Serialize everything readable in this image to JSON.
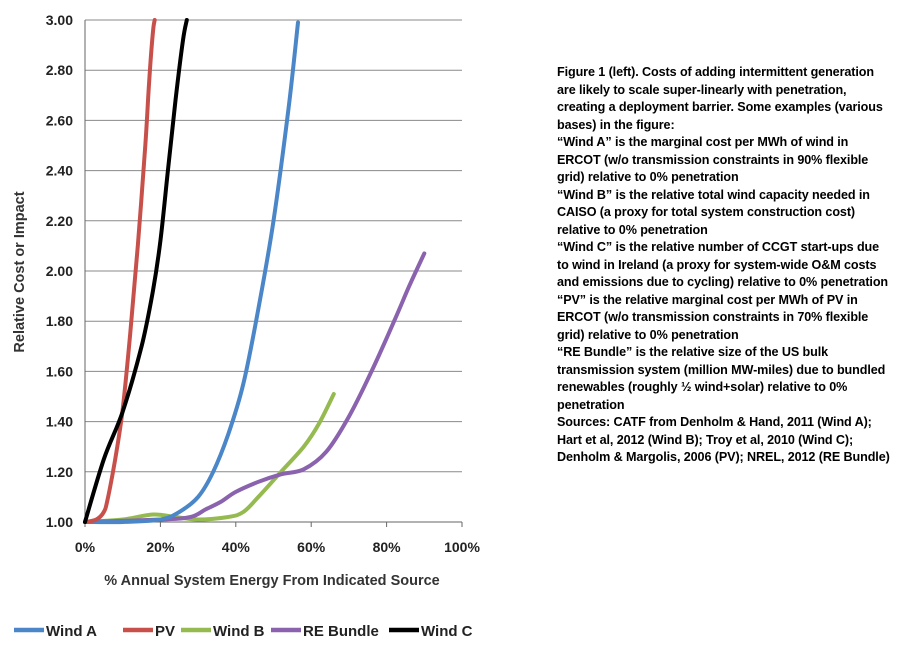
{
  "chart_data": {
    "type": "line",
    "xlabel": "% Annual System Energy From Indicated Source",
    "ylabel": "Relative Cost or Impact",
    "xlim": [
      0,
      100
    ],
    "ylim": [
      1.0,
      3.0
    ],
    "x_ticks": [
      "0%",
      "20%",
      "40%",
      "60%",
      "80%",
      "100%"
    ],
    "y_ticks": [
      "1.00",
      "1.20",
      "1.40",
      "1.60",
      "1.80",
      "2.00",
      "2.20",
      "2.40",
      "2.60",
      "2.80",
      "3.00"
    ],
    "grid": true,
    "legend_position": "bottom",
    "series": [
      {
        "name": "Wind A",
        "color": "#4a86c8",
        "x": [
          0,
          10,
          20,
          25,
          30,
          34,
          38,
          42,
          46,
          50,
          54,
          56.5
        ],
        "y": [
          1.0,
          1.0,
          1.01,
          1.04,
          1.1,
          1.2,
          1.35,
          1.55,
          1.85,
          2.2,
          2.65,
          2.99
        ]
      },
      {
        "name": "PV",
        "color": "#c8504b",
        "x": [
          0,
          3,
          5,
          6,
          8,
          10,
          12,
          14,
          16,
          17,
          18,
          18.5
        ],
        "y": [
          1.0,
          1.01,
          1.04,
          1.09,
          1.25,
          1.45,
          1.75,
          2.1,
          2.5,
          2.75,
          2.95,
          3.0
        ]
      },
      {
        "name": "Wind B",
        "color": "#95ba50",
        "x": [
          0,
          10,
          18,
          24,
          30,
          38,
          42,
          46,
          52,
          58,
          62,
          66
        ],
        "y": [
          1.0,
          1.01,
          1.03,
          1.02,
          1.01,
          1.02,
          1.04,
          1.1,
          1.2,
          1.3,
          1.39,
          1.51
        ]
      },
      {
        "name": "RE Bundle",
        "color": "#8a62ad",
        "x": [
          0,
          20,
          28,
          32,
          36,
          40,
          46,
          52,
          58,
          64,
          70,
          76,
          82,
          86,
          90
        ],
        "y": [
          1.0,
          1.01,
          1.02,
          1.05,
          1.08,
          1.12,
          1.16,
          1.19,
          1.21,
          1.28,
          1.42,
          1.6,
          1.8,
          1.94,
          2.07
        ]
      },
      {
        "name": "Wind C",
        "color": "#000000",
        "x": [
          0,
          5,
          10,
          15,
          18,
          20,
          22,
          24,
          26,
          27
        ],
        "y": [
          1.0,
          1.25,
          1.44,
          1.7,
          1.92,
          2.12,
          2.4,
          2.68,
          2.92,
          3.0
        ]
      }
    ]
  },
  "caption": {
    "paragraphs": [
      "Figure 1 (left). Costs of adding intermittent generation are likely to scale super-linearly with penetration, creating a deployment barrier.  Some examples (various bases) in the figure:",
      "“Wind A” is the marginal cost per MWh of wind in ERCOT (w/o transmission constraints in 90% flexible grid) relative to 0% penetration",
      "“Wind B” is the relative total wind capacity needed in CAISO (a proxy for total system construction cost) relative to 0% penetration",
      "“Wind C” is the relative number of CCGT start-ups due to wind in Ireland (a proxy for system-wide O&M costs and emissions due to cycling) relative to 0% penetration",
      " “PV” is the relative marginal cost per MWh of PV in ERCOT (w/o transmission constraints in 70% flexible grid) relative to 0% penetration",
      "“RE Bundle” is the relative size of the US bulk transmission system (million MW-miles) due to bundled renewables (roughly ½ wind+solar) relative to 0% penetration",
      " Sources: CATF from Denholm & Hand, 2011 (Wind A); Hart et al, 2012 (Wind B); Troy et al, 2010 (Wind C); Denholm & Margolis, 2006 (PV); NREL, 2012 (RE Bundle)"
    ]
  }
}
